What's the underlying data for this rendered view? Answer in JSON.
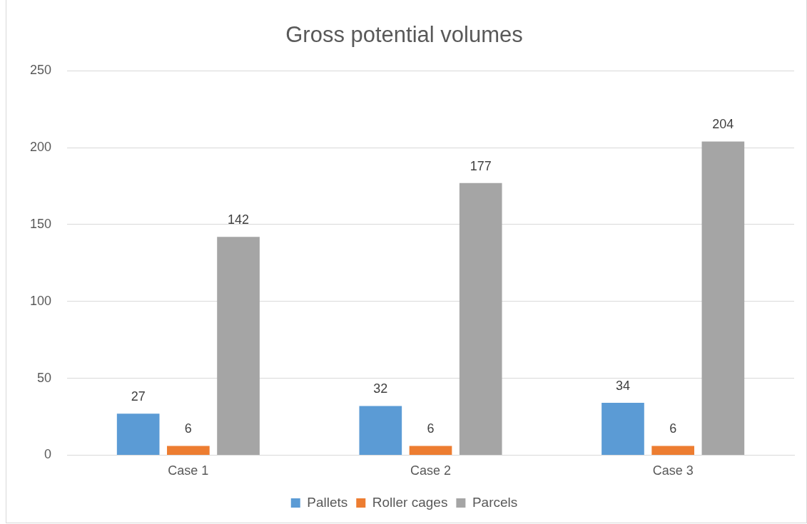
{
  "chart_data": {
    "type": "bar",
    "title": "Gross potential volumes",
    "categories": [
      "Case 1",
      "Case 2",
      "Case 3"
    ],
    "series": [
      {
        "name": "Pallets",
        "color": "#5b9bd5",
        "values": [
          27,
          32,
          34
        ]
      },
      {
        "name": "Roller cages",
        "color": "#ed7d31",
        "values": [
          6,
          6,
          6
        ]
      },
      {
        "name": "Parcels",
        "color": "#a5a5a5",
        "values": [
          142,
          177,
          204
        ]
      }
    ],
    "ylim": [
      0,
      250
    ],
    "yticks": [
      0,
      50,
      100,
      150,
      200,
      250
    ],
    "grid": "y",
    "legend": "bottom",
    "data_labels": true
  }
}
